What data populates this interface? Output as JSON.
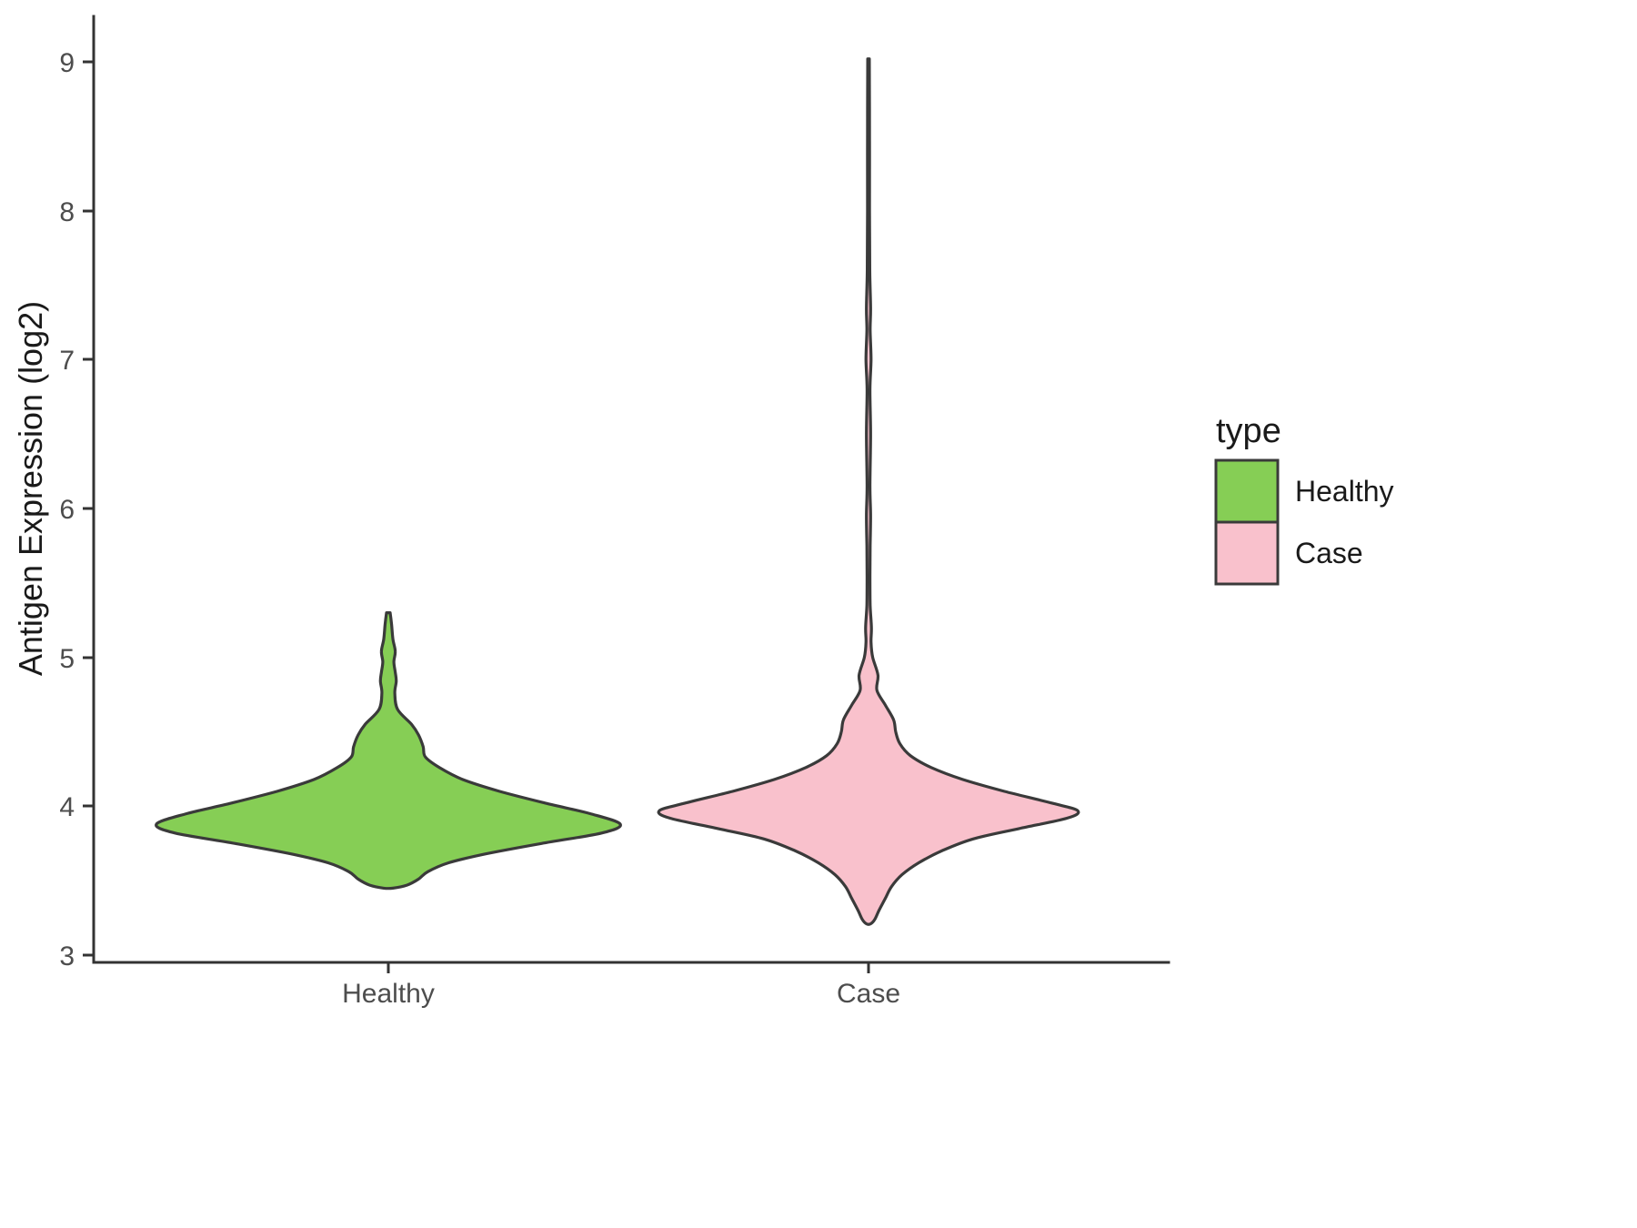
{
  "chart_data": {
    "type": "violin",
    "title": "",
    "xlabel": "",
    "ylabel": "Antigen Expression (log2)",
    "ylim": [
      3,
      9.2
    ],
    "y_ticks": [
      "3",
      "4",
      "5",
      "6",
      "7",
      "8",
      "9"
    ],
    "categories": [
      "Healthy",
      "Case"
    ],
    "grid": "off",
    "axis_color": "#333333",
    "tick_label_color": "#4d4d4d",
    "outline_color": "#3a3a3a",
    "legend": {
      "title": "type",
      "position": "right"
    },
    "series": [
      {
        "name": "Healthy",
        "color": "#86ce55",
        "y_min": 3.45,
        "y_max": 5.3,
        "peak_y": 3.88,
        "profile": [
          [
            3.45,
            0.02
          ],
          [
            3.47,
            0.08
          ],
          [
            3.51,
            0.13
          ],
          [
            3.56,
            0.17
          ],
          [
            3.62,
            0.26
          ],
          [
            3.68,
            0.42
          ],
          [
            3.75,
            0.66
          ],
          [
            3.82,
            0.92
          ],
          [
            3.88,
            1.0
          ],
          [
            3.95,
            0.87
          ],
          [
            4.02,
            0.68
          ],
          [
            4.1,
            0.48
          ],
          [
            4.18,
            0.32
          ],
          [
            4.26,
            0.22
          ],
          [
            4.33,
            0.16
          ],
          [
            4.4,
            0.15
          ],
          [
            4.48,
            0.13
          ],
          [
            4.55,
            0.1
          ],
          [
            4.65,
            0.04
          ],
          [
            4.76,
            0.028
          ],
          [
            4.84,
            0.034
          ],
          [
            4.9,
            0.03
          ],
          [
            4.97,
            0.024
          ],
          [
            5.04,
            0.03
          ],
          [
            5.12,
            0.02
          ],
          [
            5.22,
            0.014
          ],
          [
            5.3,
            0.008
          ]
        ]
      },
      {
        "name": "Case",
        "color": "#f9c1cc",
        "y_min": 3.21,
        "y_max": 9.02,
        "peak_y": 3.97,
        "profile": [
          [
            3.21,
            0.01
          ],
          [
            3.24,
            0.03
          ],
          [
            3.3,
            0.05
          ],
          [
            3.38,
            0.08
          ],
          [
            3.46,
            0.11
          ],
          [
            3.54,
            0.16
          ],
          [
            3.62,
            0.24
          ],
          [
            3.7,
            0.35
          ],
          [
            3.78,
            0.5
          ],
          [
            3.85,
            0.72
          ],
          [
            3.92,
            0.95
          ],
          [
            3.97,
            1.0
          ],
          [
            4.02,
            0.88
          ],
          [
            4.1,
            0.65
          ],
          [
            4.18,
            0.45
          ],
          [
            4.26,
            0.3
          ],
          [
            4.34,
            0.2
          ],
          [
            4.42,
            0.15
          ],
          [
            4.5,
            0.13
          ],
          [
            4.58,
            0.12
          ],
          [
            4.68,
            0.08
          ],
          [
            4.78,
            0.04
          ],
          [
            4.88,
            0.045
          ],
          [
            5.0,
            0.02
          ],
          [
            5.1,
            0.012
          ],
          [
            5.2,
            0.014
          ],
          [
            5.35,
            0.008
          ],
          [
            5.55,
            0.007
          ],
          [
            5.75,
            0.008
          ],
          [
            5.95,
            0.01
          ],
          [
            6.15,
            0.007
          ],
          [
            6.5,
            0.01
          ],
          [
            6.8,
            0.007
          ],
          [
            7.0,
            0.012
          ],
          [
            7.2,
            0.008
          ],
          [
            7.35,
            0.01
          ],
          [
            7.6,
            0.006
          ],
          [
            8.0,
            0.005
          ],
          [
            8.5,
            0.005
          ],
          [
            9.02,
            0.004
          ]
        ]
      }
    ]
  }
}
